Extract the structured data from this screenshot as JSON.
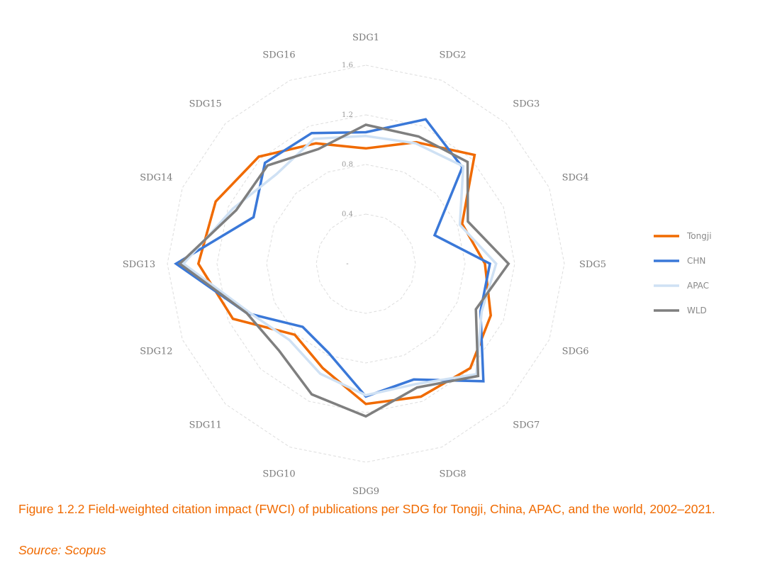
{
  "chart_data": {
    "type": "radar",
    "categories": [
      "SDG1",
      "SDG2",
      "SDG3",
      "SDG4",
      "SDG5",
      "SDG6",
      "SDG7",
      "SDG8",
      "SDG9",
      "SDG10",
      "SDG11",
      "SDG12",
      "SDG13",
      "SDG14",
      "SDG15",
      "SDG16"
    ],
    "tick_labels": [
      "-",
      "0.4",
      "0.8",
      "1.2",
      "1.6"
    ],
    "rlim": [
      0,
      1.6
    ],
    "grid": true,
    "legend_position": "right",
    "series": [
      {
        "name": "Tongji",
        "color": "#f06a00",
        "values": [
          0.93,
          1.06,
          1.24,
          0.84,
          0.96,
          1.09,
          1.19,
          1.16,
          1.13,
          0.91,
          0.81,
          1.16,
          1.35,
          1.31,
          1.22,
          1.05
        ]
      },
      {
        "name": "CHN",
        "color": "#3a78d8",
        "values": [
          1.06,
          1.26,
          1.1,
          0.6,
          1.0,
          1.0,
          1.34,
          1.01,
          1.07,
          0.78,
          0.72,
          1.04,
          1.53,
          0.98,
          1.15,
          1.14
        ]
      },
      {
        "name": "APAC",
        "color": "#cfe1f4",
        "values": [
          1.03,
          1.05,
          1.11,
          0.82,
          1.05,
          1.01,
          1.26,
          1.05,
          1.06,
          0.96,
          0.87,
          1.02,
          1.47,
          1.16,
          1.02,
          1.09
        ]
      },
      {
        "name": "WLD",
        "color": "#7f7f7f",
        "values": [
          1.12,
          1.11,
          1.16,
          0.89,
          1.15,
          0.96,
          1.28,
          1.08,
          1.23,
          1.14,
          0.99,
          1.04,
          1.5,
          1.13,
          1.12,
          1.0
        ]
      }
    ]
  },
  "caption": "Figure 1.2.2 Field-weighted citation impact (FWCI) of publications per SDG for Tongji, China, APAC, and the world, 2002–2021.",
  "source": "Source: Scopus"
}
